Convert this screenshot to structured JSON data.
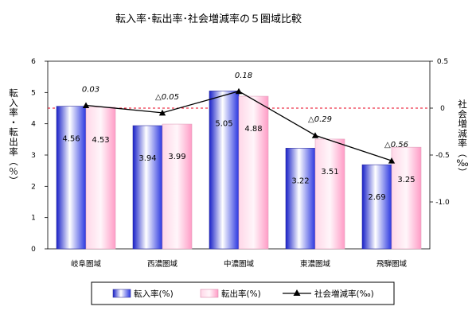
{
  "chart_data": {
    "type": "bar",
    "title": "転入率･転出率･社会増減率の５圏域比較",
    "categories": [
      "岐阜圏域",
      "西濃圏域",
      "中濃圏域",
      "東濃圏域",
      "飛騨圏域"
    ],
    "ylabel_left": [
      "転",
      "入",
      "率",
      "・",
      "転",
      "出",
      "率",
      "︵",
      "％",
      "︶"
    ],
    "ylabel_right": [
      "社",
      "会",
      "増",
      "減",
      "率",
      "︵",
      "‰",
      "︶"
    ],
    "y_left": {
      "min": 0,
      "max": 6,
      "ticks": [
        "0",
        "1",
        "2",
        "3",
        "4",
        "5",
        "6"
      ]
    },
    "y_right": {
      "min": -1.5,
      "max": 0.5,
      "ticks": [
        "0.5",
        "0",
        "-0.5",
        "-1.0"
      ],
      "tick_values": [
        0.5,
        0,
        -0.5,
        -1.0
      ]
    },
    "series": [
      {
        "name": "転入率(%)",
        "type": "bar",
        "values": [
          4.56,
          3.94,
          5.05,
          3.22,
          2.69
        ],
        "labels": [
          "4.56",
          "3.94",
          "5.05",
          "3.22",
          "2.69"
        ]
      },
      {
        "name": "転出率(%)",
        "type": "bar",
        "values": [
          4.53,
          3.99,
          4.88,
          3.51,
          3.25
        ],
        "labels": [
          "4.53",
          "3.99",
          "4.88",
          "3.51",
          "3.25"
        ]
      },
      {
        "name": "社会増減率(‰)",
        "type": "line",
        "axis": "right",
        "values": [
          0.03,
          -0.05,
          0.18,
          -0.29,
          -0.56
        ],
        "labels": [
          "0.03",
          "△0.05",
          "0.18",
          "△0.29",
          "△0.56"
        ]
      }
    ],
    "reference_line": {
      "axis": "right",
      "value": 0,
      "style": "dashed",
      "color": "#e8001c"
    },
    "grid": false,
    "legend_position": "bottom",
    "colors": {
      "bar1_dark": "#1f2ad6",
      "bar1_light": "#ffffff",
      "bar2_dark": "#ff9cc6",
      "bar2_light": "#ffe9f2",
      "line": "#000000",
      "zero_line": "#e8001c"
    }
  }
}
